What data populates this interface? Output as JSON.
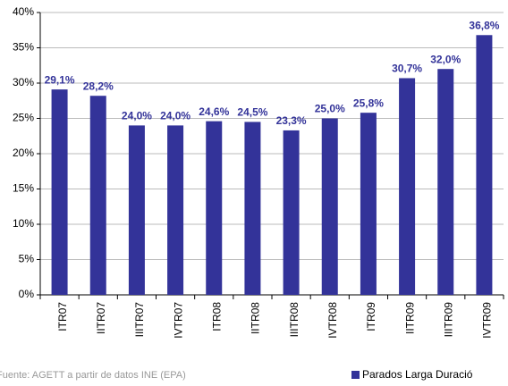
{
  "chart_data": {
    "type": "bar",
    "categories": [
      "ITR07",
      "IITR07",
      "IIITR07",
      "IVTR07",
      "ITR08",
      "IITR08",
      "IIITR08",
      "IVTR08",
      "ITR09",
      "IITR09",
      "IIITR09",
      "IVTR09"
    ],
    "series": [
      {
        "name": "Parados Larga Duració",
        "color": "#333399",
        "values": [
          29.1,
          28.2,
          24.0,
          24.0,
          24.6,
          24.5,
          23.3,
          25.0,
          25.8,
          30.7,
          32.0,
          36.8
        ],
        "value_labels": [
          "29,1%",
          "28,2%",
          "24,0%",
          "24,0%",
          "24,6%",
          "24,5%",
          "23,3%",
          "25,0%",
          "25,8%",
          "30,7%",
          "32,0%",
          "36,8%"
        ]
      }
    ],
    "ylim": [
      0,
      40
    ],
    "yticks": [
      {
        "value": 0,
        "label": "0%"
      },
      {
        "value": 5,
        "label": "5%"
      },
      {
        "value": 10,
        "label": "10%"
      },
      {
        "value": 15,
        "label": "15%"
      },
      {
        "value": 20,
        "label": "20%"
      },
      {
        "value": 25,
        "label": "25%"
      },
      {
        "value": 30,
        "label": "30%"
      },
      {
        "value": 35,
        "label": "35%"
      },
      {
        "value": 40,
        "label": "40%"
      }
    ],
    "grid": true,
    "source": "Fuente: AGETT a partir de datos INE (EPA)",
    "legend": "bottom-right"
  }
}
